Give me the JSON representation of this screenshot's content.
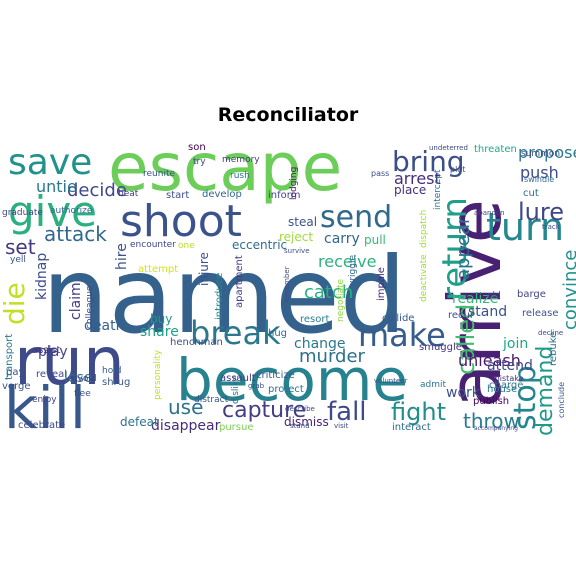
{
  "chart_data": {
    "type": "wordcloud",
    "title": "Reconciliator",
    "words": [
      {
        "text": "named",
        "color": "#35618d"
      },
      {
        "text": "escape",
        "color": "#6cce59"
      },
      {
        "text": "become",
        "color": "#26828e"
      },
      {
        "text": "run",
        "color": "#3e4a89"
      },
      {
        "text": "arrive",
        "color": "#482172"
      },
      {
        "text": "kill",
        "color": "#38588c"
      },
      {
        "text": "shoot",
        "color": "#3b528b"
      },
      {
        "text": "give",
        "color": "#2ab07f"
      },
      {
        "text": "save",
        "color": "#21918c"
      },
      {
        "text": "break",
        "color": "#2a788e"
      },
      {
        "text": "make",
        "color": "#365d8d"
      },
      {
        "text": "turn",
        "color": "#24868e"
      },
      {
        "text": "send",
        "color": "#31688e"
      },
      {
        "text": "return",
        "color": "#1f9e89"
      },
      {
        "text": "stop",
        "color": "#25858e"
      },
      {
        "text": "bring",
        "color": "#3c4f8a"
      },
      {
        "text": "fight",
        "color": "#228d8d"
      },
      {
        "text": "fall",
        "color": "#3e4989"
      },
      {
        "text": "capture",
        "color": "#433e85"
      },
      {
        "text": "called",
        "color": "#42be71"
      },
      {
        "text": "die",
        "color": "#c2df23"
      },
      {
        "text": "use",
        "color": "#2c728e"
      },
      {
        "text": "demand",
        "color": "#1f9a8a"
      },
      {
        "text": "lure",
        "color": "#3f4788"
      },
      {
        "text": "throw",
        "color": "#297b8e"
      },
      {
        "text": "attack",
        "color": "#31688e"
      },
      {
        "text": "appear",
        "color": "#2e6e8e"
      },
      {
        "text": "push",
        "color": "#3e4c8a"
      },
      {
        "text": "murder",
        "color": "#2d708e"
      },
      {
        "text": "convince",
        "color": "#21918c"
      },
      {
        "text": "catch",
        "color": "#28ae80"
      },
      {
        "text": "set",
        "color": "#443983"
      },
      {
        "text": "propose",
        "color": "#297a8e"
      },
      {
        "text": "decide",
        "color": "#3f4889"
      },
      {
        "text": "untie",
        "color": "#2a778e"
      },
      {
        "text": "arrest",
        "color": "#472d7b"
      },
      {
        "text": "receive",
        "color": "#2db27d"
      },
      {
        "text": "carry",
        "color": "#31678e"
      },
      {
        "text": "claim",
        "color": "#433d84"
      },
      {
        "text": "kidnap",
        "color": "#3d4e8a"
      },
      {
        "text": "hire",
        "color": "#3b528b"
      },
      {
        "text": "change",
        "color": "#2a788e"
      },
      {
        "text": "death",
        "color": "#355f8d"
      },
      {
        "text": "share",
        "color": "#1fa088"
      },
      {
        "text": "play",
        "color": "#404588"
      },
      {
        "text": "lose",
        "color": "#2c718e"
      },
      {
        "text": "unleash",
        "color": "#48186a"
      },
      {
        "text": "work",
        "color": "#3c508b"
      },
      {
        "text": "disappear",
        "color": "#472c7a"
      },
      {
        "text": "join",
        "color": "#21a685"
      },
      {
        "text": "stand",
        "color": "#3b518b"
      },
      {
        "text": "realize",
        "color": "#35b779"
      },
      {
        "text": "attend",
        "color": "#3e4a89"
      },
      {
        "text": "place",
        "color": "#472f7d"
      },
      {
        "text": "steal",
        "color": "#3b528b"
      },
      {
        "text": "pull",
        "color": "#37b878"
      },
      {
        "text": "reject",
        "color": "#a0da39"
      },
      {
        "text": "eccentric",
        "color": "#2e6d8e"
      },
      {
        "text": "introduce",
        "color": "#23898e"
      },
      {
        "text": "injure",
        "color": "#3b528b"
      },
      {
        "text": "buy",
        "color": "#1f988b"
      },
      {
        "text": "apartment",
        "color": "#443983"
      },
      {
        "text": "attempt",
        "color": "#d5e21a"
      },
      {
        "text": "smuggle",
        "color": "#46307e"
      },
      {
        "text": "collide",
        "color": "#38598c"
      },
      {
        "text": "impale",
        "color": "#472a7a"
      },
      {
        "text": "resort",
        "color": "#277f8e"
      },
      {
        "text": "hug",
        "color": "#31678e"
      },
      {
        "text": "house",
        "color": "#297a8e"
      },
      {
        "text": "publish",
        "color": "#440154"
      },
      {
        "text": "barge",
        "color": "#414487"
      },
      {
        "text": "release",
        "color": "#3a548c"
      },
      {
        "text": "recur",
        "color": "#3d4d8a"
      },
      {
        "text": "charge",
        "color": "#2c738e"
      },
      {
        "text": "mistake",
        "color": "#46317e"
      },
      {
        "text": "threaten",
        "color": "#22a884"
      },
      {
        "text": "summon",
        "color": "#433e85"
      },
      {
        "text": "swindle",
        "color": "#2e6f8e"
      },
      {
        "text": "intercept",
        "color": "#2c738e"
      },
      {
        "text": "rebuke",
        "color": "#2e6e8e"
      },
      {
        "text": "conclude",
        "color": "#38598c"
      },
      {
        "text": "dismiss",
        "color": "#482374"
      },
      {
        "text": "criticize",
        "color": "#38598c"
      },
      {
        "text": "henchman",
        "color": "#3d4d8a"
      },
      {
        "text": "assault",
        "color": "#453781"
      },
      {
        "text": "protect",
        "color": "#2d718e"
      },
      {
        "text": "distract",
        "color": "#3b528b"
      },
      {
        "text": "dislike",
        "color": "#2d708e"
      },
      {
        "text": "encounter",
        "color": "#414487"
      },
      {
        "text": "one",
        "color": "#bddf26"
      },
      {
        "text": "start",
        "color": "#3c4f8a"
      },
      {
        "text": "develop",
        "color": "#32658e"
      },
      {
        "text": "inform",
        "color": "#414487"
      },
      {
        "text": "lodging",
        "color": "#481769"
      },
      {
        "text": "memory",
        "color": "#443a83"
      },
      {
        "text": "rush",
        "color": "#2c728e"
      },
      {
        "text": "son",
        "color": "#440154"
      },
      {
        "text": "try",
        "color": "#414487"
      },
      {
        "text": "reunite",
        "color": "#3a548c"
      },
      {
        "text": "beat",
        "color": "#453882"
      },
      {
        "text": "pass",
        "color": "#3d4e8a"
      },
      {
        "text": "cut",
        "color": "#2d708e"
      },
      {
        "text": "plot",
        "color": "#3f4889"
      },
      {
        "text": "pay",
        "color": "#3b528b"
      },
      {
        "text": "verge",
        "color": "#3a548c"
      },
      {
        "text": "transport",
        "color": "#2a788e"
      },
      {
        "text": "assist",
        "color": "#46327e"
      },
      {
        "text": "reveal",
        "color": "#3e4a89"
      },
      {
        "text": "avoid",
        "color": "#433e85"
      },
      {
        "text": "flee",
        "color": "#3b528b"
      },
      {
        "text": "enjoy",
        "color": "#404688"
      },
      {
        "text": "celebrate",
        "color": "#3e4989"
      },
      {
        "text": "hold",
        "color": "#365c8d"
      },
      {
        "text": "shrug",
        "color": "#38598c"
      },
      {
        "text": "defeat",
        "color": "#2c728e"
      },
      {
        "text": "pursue",
        "color": "#7ad151"
      },
      {
        "text": "interact",
        "color": "#2e6d8e"
      },
      {
        "text": "admit",
        "color": "#2a788e"
      },
      {
        "text": "authorize",
        "color": "#31688e"
      },
      {
        "text": "graduate",
        "color": "#404588"
      },
      {
        "text": "yell",
        "color": "#3b528b"
      },
      {
        "text": "colleague",
        "color": "#3e4a89"
      },
      {
        "text": "personality",
        "color": "#bddf26"
      },
      {
        "text": "survive",
        "color": "#3b528b"
      },
      {
        "text": "remember",
        "color": "#3e4a89"
      },
      {
        "text": "negotiate",
        "color": "#8ed645"
      },
      {
        "text": "wriggle",
        "color": "#31688e"
      },
      {
        "text": "deactivate",
        "color": "#a5db36"
      },
      {
        "text": "dispatch",
        "color": "#a5db36"
      },
      {
        "text": "undeterred",
        "color": "#3e4a89"
      },
      {
        "text": "abandon",
        "color": "#3e4a89"
      },
      {
        "text": "track",
        "color": "#3e4a89"
      },
      {
        "text": "old",
        "color": "#3e4a89"
      },
      {
        "text": "decline",
        "color": "#3e4a89"
      },
      {
        "text": "volunteer",
        "color": "#3e4a89"
      },
      {
        "text": "grab",
        "color": "#3e4a89"
      },
      {
        "text": "describe",
        "color": "#3e4a89"
      },
      {
        "text": "stand",
        "color": "#3e4a89"
      },
      {
        "text": "visit",
        "color": "#3e4a89"
      },
      {
        "text": "accompanying",
        "color": "#3e4a89"
      }
    ]
  }
}
